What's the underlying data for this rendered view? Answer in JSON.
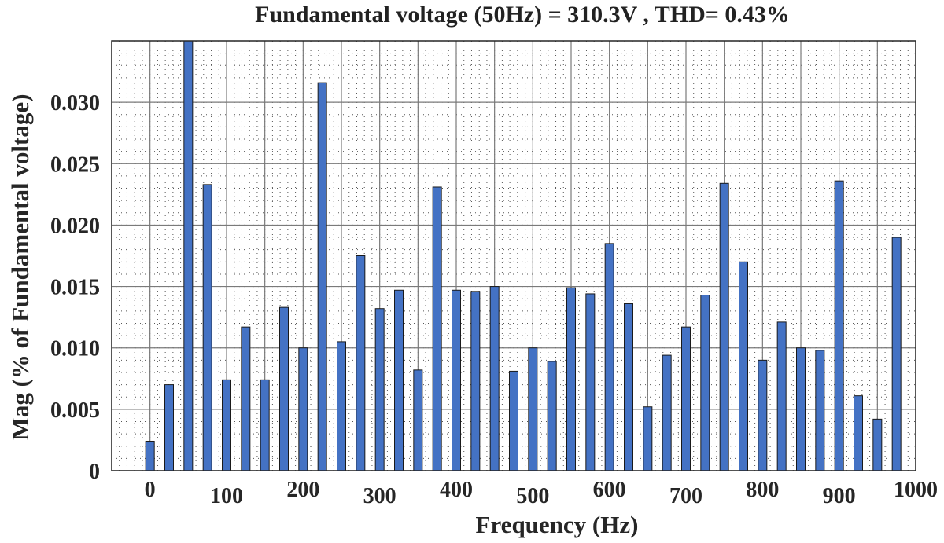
{
  "chart_data": {
    "type": "bar",
    "title": "Fundamental voltage (50Hz) = 310.3V , THD= 0.43%",
    "xlabel": "Frequency (Hz)",
    "ylabel": "Mag (% of Fundamental voltage)",
    "xlim": [
      -50,
      1000
    ],
    "ylim": [
      0,
      0.035
    ],
    "xticks": [
      0,
      100,
      200,
      300,
      400,
      500,
      600,
      700,
      800,
      900,
      1000
    ],
    "xtick_labels": [
      "0",
      "100",
      "200",
      "300",
      "400",
      "500",
      "600",
      "700",
      "800",
      "900",
      "1000"
    ],
    "yticks": [
      0,
      0.005,
      0.01,
      0.015,
      0.02,
      0.025,
      0.03
    ],
    "ytick_labels": [
      "0",
      "0.005",
      "0.010",
      "0.015",
      "0.020",
      "0.025",
      "0.030"
    ],
    "grid": true,
    "minor_grid": true,
    "bar_color": "#4472c4",
    "x": [
      0,
      25,
      50,
      75,
      100,
      125,
      150,
      175,
      200,
      225,
      250,
      275,
      300,
      325,
      350,
      375,
      400,
      425,
      450,
      475,
      500,
      525,
      550,
      575,
      600,
      625,
      650,
      675,
      700,
      725,
      750,
      775,
      800,
      825,
      850,
      875,
      900,
      925,
      950,
      975
    ],
    "values": [
      0.0024,
      0.007,
      0.035,
      0.0233,
      0.0074,
      0.0117,
      0.0074,
      0.0133,
      0.01,
      0.0316,
      0.0105,
      0.0175,
      0.0132,
      0.0147,
      0.0082,
      0.0231,
      0.0147,
      0.0146,
      0.015,
      0.0081,
      0.01,
      0.0089,
      0.0149,
      0.0144,
      0.0185,
      0.0136,
      0.0052,
      0.0094,
      0.0117,
      0.0143,
      0.0234,
      0.017,
      0.009,
      0.0121,
      0.01,
      0.0098,
      0.0236,
      0.0061,
      0.0042,
      0.019
    ]
  }
}
